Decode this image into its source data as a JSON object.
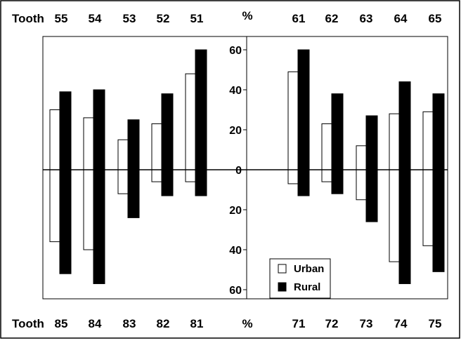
{
  "chart_data": {
    "type": "bar",
    "title": "",
    "unit_label": "%",
    "row_label": "Tooth",
    "ylim": [
      -60,
      60
    ],
    "y_ticks_top": [
      "60",
      "40",
      "20",
      "0"
    ],
    "y_ticks_bottom": [
      "20",
      "40",
      "60"
    ],
    "top_teeth": [
      "55",
      "54",
      "53",
      "52",
      "51",
      "61",
      "62",
      "63",
      "64",
      "65"
    ],
    "bottom_teeth": [
      "85",
      "84",
      "83",
      "82",
      "81",
      "71",
      "72",
      "73",
      "74",
      "75"
    ],
    "series": [
      {
        "name": "Urban",
        "color": "#ffffff",
        "upper_values": [
          30,
          26,
          15,
          23,
          48,
          49,
          23,
          12,
          28,
          29
        ],
        "lower_values": [
          36,
          40,
          12,
          6,
          6,
          7,
          6,
          15,
          46,
          38
        ]
      },
      {
        "name": "Rural",
        "color": "#000000",
        "upper_values": [
          39,
          40,
          25,
          38,
          60,
          60,
          38,
          27,
          44,
          38
        ],
        "lower_values": [
          52,
          57,
          24,
          13,
          13,
          13,
          12,
          26,
          57,
          51
        ]
      }
    ],
    "legend_position": "bottom-right of right panel",
    "grid": false
  }
}
